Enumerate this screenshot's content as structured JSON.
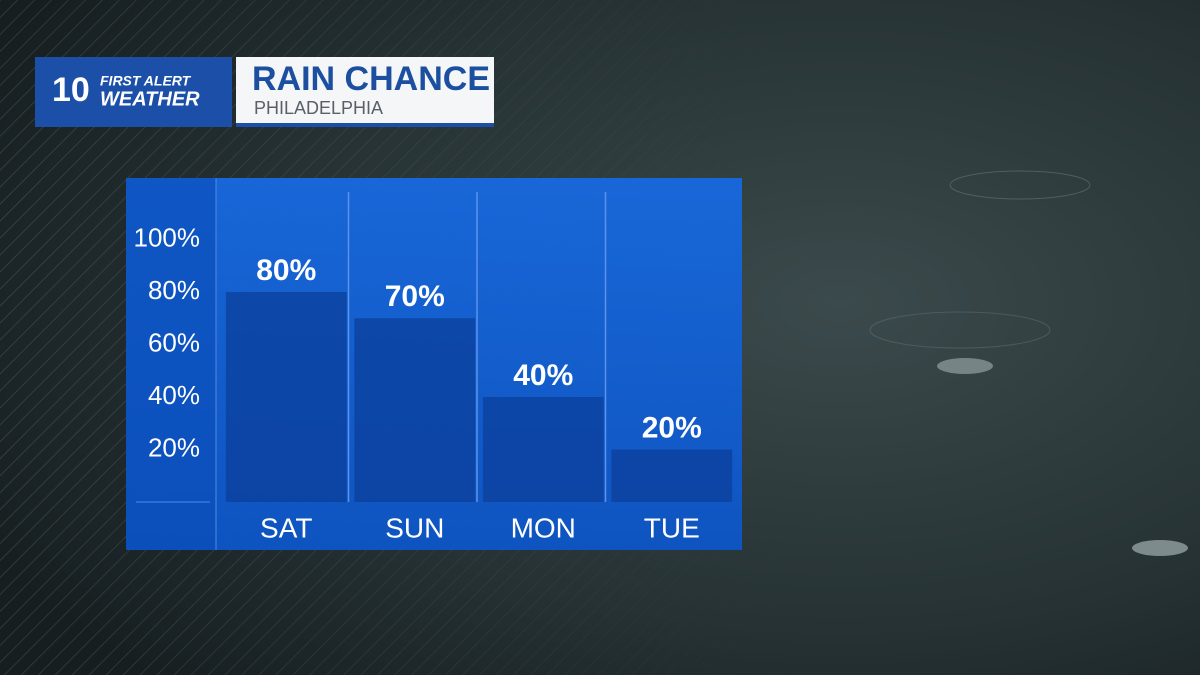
{
  "header": {
    "logo_number": "10",
    "logo_line1": "FIRST ALERT",
    "logo_line2": "WEATHER"
  },
  "chart_data": {
    "type": "bar",
    "title": "RAIN CHANCE",
    "subtitle": "PHILADELPHIA",
    "categories": [
      "SAT",
      "SUN",
      "MON",
      "TUE"
    ],
    "values": [
      80,
      70,
      40,
      20
    ],
    "value_labels": [
      "80%",
      "70%",
      "40%",
      "20%"
    ],
    "color": "#0b3f99",
    "ylim": [
      0,
      120
    ],
    "yticks": [
      {
        "value": 20,
        "label": "20%"
      },
      {
        "value": 40,
        "label": "40%"
      },
      {
        "value": 60,
        "label": "60%"
      },
      {
        "value": 80,
        "label": "80%"
      },
      {
        "value": 100,
        "label": "100%"
      }
    ],
    "grid": false
  }
}
